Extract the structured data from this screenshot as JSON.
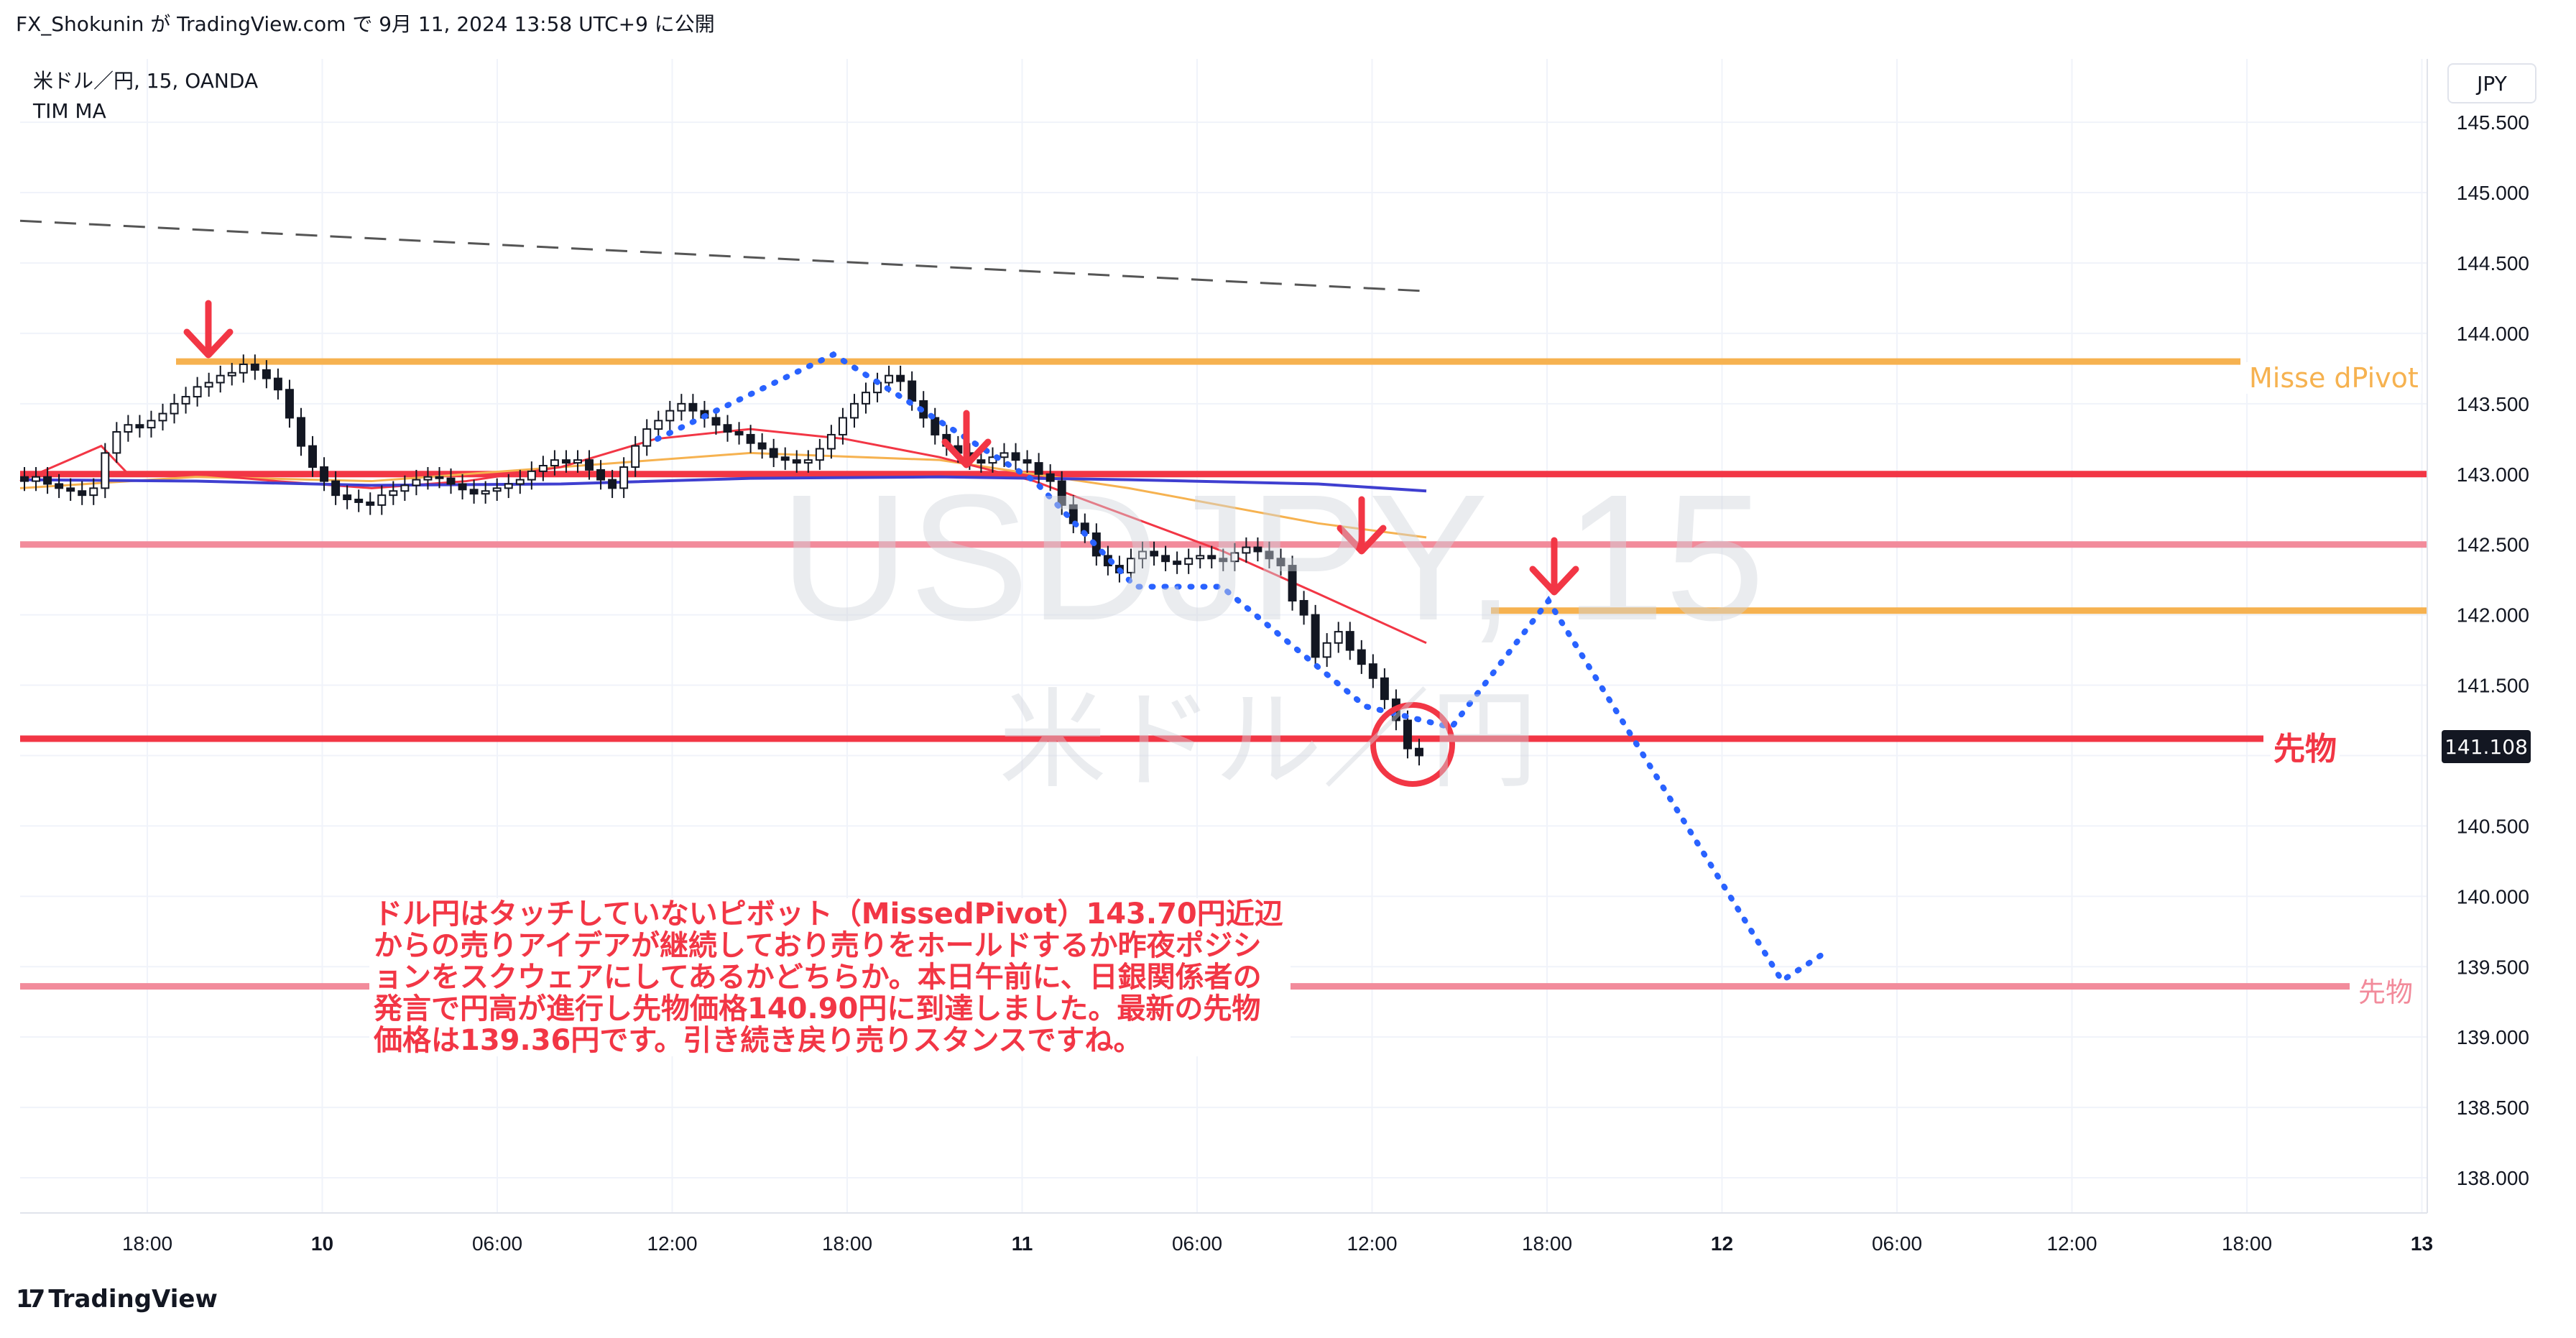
{
  "header": {
    "published": "FX_Shokunin が TradingView.com で 9月 11, 2024 13:58 UTC+9 に公開"
  },
  "symbol": {
    "line1": "米ドル／円, 15, OANDA",
    "line2": "TIM MA",
    "watermark": "USDJPY, 15",
    "watermark_sub": "米ドル／円"
  },
  "currency": "JPY",
  "current_price": "141.108",
  "footer": {
    "brand": "TradingView",
    "brand_mark": "17"
  },
  "annotations": {
    "missed_pivot": "Misse dPivot",
    "futures_main": "先物",
    "futures_target": "先物",
    "comment": "ドル円はタッチしていないピボット（MissedPivot）143.70円近辺からの売りアイデアが継続しており売りをホールドするか昨夜ポジションをスクウェアにしてあるかどちらか。本日午前に、日銀関係者の発言で円高が進行し先物価格140.90円に到達しました。最新の先物価格は139.36円です。引き続き戻り売りスタンスですね。"
  },
  "colors": {
    "orange": "#f6b250",
    "red": "#f23645",
    "pink": "#f28b9b",
    "blue": "#2962ff",
    "bull": "#ffffff",
    "bear": "#131722",
    "grid": "#f0f3fa"
  },
  "chart_data": {
    "type": "candlestick",
    "ylim": [
      137.75,
      145.95
    ],
    "y_ticks": [
      "145.500",
      "145.000",
      "144.500",
      "144.000",
      "143.500",
      "143.000",
      "142.500",
      "142.000",
      "141.500",
      "141.000",
      "140.500",
      "140.000",
      "139.500",
      "139.000",
      "138.500",
      "138.000"
    ],
    "x_ticks": [
      "18:00",
      "10",
      "06:00",
      "12:00",
      "18:00",
      "11",
      "06:00",
      "12:00",
      "18:00",
      "12",
      "06:00",
      "12:00",
      "18:00",
      "13"
    ],
    "horizontal_levels": [
      {
        "name": "missed-pivot-level",
        "price": 143.8
      },
      {
        "name": "level-143",
        "price": 143.0
      },
      {
        "name": "level-142-5",
        "price": 142.5
      },
      {
        "name": "level-142-05",
        "price": 142.03
      },
      {
        "name": "futures-level",
        "price": 141.12
      },
      {
        "name": "futures-target-level",
        "price": 139.36
      }
    ],
    "close_series": [
      142.95,
      142.98,
      142.93,
      142.9,
      142.88,
      142.85,
      142.9,
      143.15,
      143.3,
      143.35,
      143.33,
      143.38,
      143.43,
      143.5,
      143.55,
      143.62,
      143.65,
      143.7,
      143.72,
      143.78,
      143.74,
      143.68,
      143.6,
      143.4,
      143.2,
      143.05,
      142.95,
      142.85,
      142.82,
      142.8,
      142.78,
      142.85,
      142.88,
      142.92,
      142.96,
      142.98,
      142.97,
      142.93,
      142.89,
      142.86,
      142.88,
      142.9,
      142.93,
      142.96,
      143.02,
      143.06,
      143.1,
      143.08,
      143.1,
      143.03,
      142.96,
      142.9,
      143.05,
      143.2,
      143.32,
      143.38,
      143.45,
      143.5,
      143.45,
      143.4,
      143.35,
      143.3,
      143.28,
      143.22,
      143.18,
      143.12,
      143.1,
      143.08,
      143.1,
      143.18,
      143.28,
      143.4,
      143.5,
      143.58,
      143.65,
      143.7,
      143.66,
      143.52,
      143.4,
      143.28,
      143.2,
      143.15,
      143.1,
      143.08,
      143.12,
      143.15,
      143.1,
      143.08,
      143.0,
      142.95,
      142.78,
      142.65,
      142.58,
      142.42,
      142.35,
      142.3,
      142.4,
      142.45,
      142.42,
      142.38,
      142.36,
      142.4,
      142.42,
      142.4,
      142.38,
      142.44,
      142.48,
      142.45,
      142.4,
      142.35,
      142.1,
      142.0,
      141.7,
      141.8,
      141.88,
      141.75,
      141.65,
      141.55,
      141.4,
      141.25,
      141.05,
      141.0
    ],
    "ma_red": [
      [
        143.0,
        142.95
      ],
      [
        143.6,
        143.2
      ],
      [
        143.8,
        143.0
      ],
      [
        144.3,
        143.0
      ],
      [
        144.9,
        142.95
      ],
      [
        145.6,
        142.9
      ],
      [
        146.3,
        142.95
      ],
      [
        147.0,
        143.05
      ],
      [
        147.7,
        143.25
      ],
      [
        148.4,
        143.32
      ],
      [
        149.1,
        143.25
      ],
      [
        149.8,
        143.12
      ],
      [
        150.5,
        142.95
      ],
      [
        151.2,
        142.7
      ],
      [
        151.9,
        142.45
      ],
      [
        152.6,
        142.15
      ],
      [
        153.4,
        141.8
      ]
    ],
    "ma_orange": [
      [
        143.0,
        142.9
      ],
      [
        144.3,
        142.98
      ],
      [
        145.6,
        142.95
      ],
      [
        147.0,
        143.05
      ],
      [
        148.4,
        143.15
      ],
      [
        149.8,
        143.1
      ],
      [
        151.2,
        142.9
      ],
      [
        152.6,
        142.65
      ],
      [
        153.4,
        142.55
      ]
    ],
    "ma_blue": [
      [
        143.0,
        142.96
      ],
      [
        144.3,
        142.95
      ],
      [
        145.6,
        142.92
      ],
      [
        147.0,
        142.93
      ],
      [
        148.4,
        142.97
      ],
      [
        149.8,
        142.98
      ],
      [
        151.2,
        142.96
      ],
      [
        152.6,
        142.93
      ],
      [
        153.4,
        142.88
      ]
    ],
    "trend_dash": [
      [
        143.0,
        144.8
      ],
      [
        153.4,
        144.3
      ]
    ],
    "projection_dots": [
      [
        146.6,
        143.25
      ],
      [
        148.0,
        143.85
      ],
      [
        150.6,
        142.95
      ],
      [
        151.5,
        142.2
      ],
      [
        152.2,
        142.2
      ],
      [
        153.6,
        141.35
      ],
      [
        154.6,
        141.2
      ],
      [
        155.5,
        142.1
      ],
      [
        159.2,
        139.4
      ],
      [
        159.8,
        139.6
      ]
    ]
  }
}
